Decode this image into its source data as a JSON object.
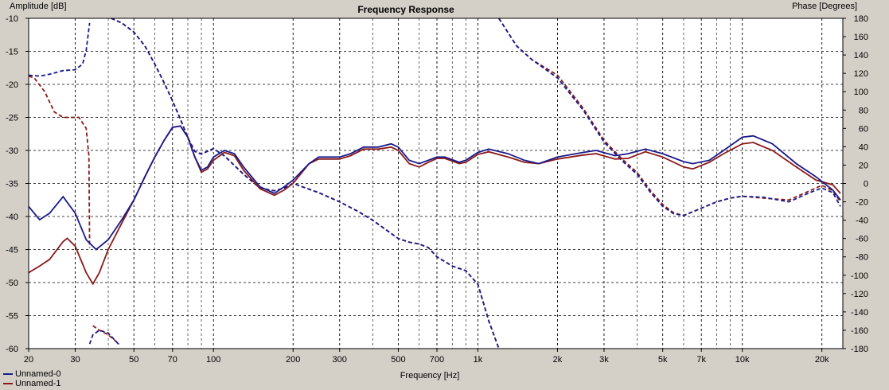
{
  "chart_data": {
    "type": "line",
    "title": "Frequency Response",
    "xlabel": "Frequency [Hz]",
    "ylabel_left": "Amplitude [dB]",
    "ylabel_right": "Phase [Degrees]",
    "xscale": "log",
    "xlim": [
      20,
      24000
    ],
    "ylim_left": [
      -60,
      -10
    ],
    "ylim_right": [
      -180,
      180
    ],
    "x_tick_labels": [
      {
        "v": 20,
        "t": "20"
      },
      {
        "v": 30,
        "t": "30"
      },
      {
        "v": 50,
        "t": "50"
      },
      {
        "v": 70,
        "t": "70"
      },
      {
        "v": 100,
        "t": "100"
      },
      {
        "v": 200,
        "t": "200"
      },
      {
        "v": 300,
        "t": "300"
      },
      {
        "v": 500,
        "t": "500"
      },
      {
        "v": 700,
        "t": "700"
      },
      {
        "v": 1000,
        "t": "1k"
      },
      {
        "v": 2000,
        "t": "2k"
      },
      {
        "v": 3000,
        "t": "3k"
      },
      {
        "v": 5000,
        "t": "5k"
      },
      {
        "v": 7000,
        "t": "7k"
      },
      {
        "v": 10000,
        "t": "10k"
      },
      {
        "v": 20000,
        "t": "20k"
      }
    ],
    "y_left_ticks": [
      -10,
      -15,
      -20,
      -25,
      -30,
      -35,
      -40,
      -45,
      -50,
      -55,
      -60
    ],
    "y_right_ticks": [
      180,
      160,
      140,
      120,
      100,
      80,
      60,
      40,
      20,
      0,
      -20,
      -40,
      -60,
      -80,
      -100,
      -120,
      -140,
      -160,
      -180
    ],
    "grid": true,
    "legend_position": "bottom-left",
    "series": [
      {
        "name": "Unnamed-0",
        "color": "#1a1a8c",
        "magnitude": [
          [
            20,
            -38.5
          ],
          [
            22,
            -40.5
          ],
          [
            24,
            -39.5
          ],
          [
            27,
            -37
          ],
          [
            30,
            -39.5
          ],
          [
            33,
            -43.5
          ],
          [
            36,
            -45
          ],
          [
            40,
            -43.5
          ],
          [
            45,
            -40.5
          ],
          [
            50,
            -37.5
          ],
          [
            55,
            -34
          ],
          [
            60,
            -31
          ],
          [
            65,
            -28.5
          ],
          [
            70,
            -26.5
          ],
          [
            75,
            -26.3
          ],
          [
            80,
            -28
          ],
          [
            85,
            -31
          ],
          [
            90,
            -33
          ],
          [
            95,
            -32.5
          ],
          [
            100,
            -31
          ],
          [
            110,
            -30
          ],
          [
            120,
            -30.5
          ],
          [
            130,
            -32.5
          ],
          [
            150,
            -35.5
          ],
          [
            170,
            -36.5
          ],
          [
            185,
            -35.5
          ],
          [
            200,
            -34.5
          ],
          [
            230,
            -32
          ],
          [
            250,
            -31
          ],
          [
            300,
            -31
          ],
          [
            330,
            -30.5
          ],
          [
            370,
            -29.5
          ],
          [
            420,
            -29.5
          ],
          [
            470,
            -29
          ],
          [
            500,
            -29.5
          ],
          [
            550,
            -31.5
          ],
          [
            600,
            -32
          ],
          [
            650,
            -31.5
          ],
          [
            700,
            -31
          ],
          [
            750,
            -31
          ],
          [
            850,
            -31.8
          ],
          [
            900,
            -31.5
          ],
          [
            1000,
            -30.3
          ],
          [
            1100,
            -29.8
          ],
          [
            1300,
            -30.5
          ],
          [
            1500,
            -31.5
          ],
          [
            1700,
            -32
          ],
          [
            2000,
            -31
          ],
          [
            2500,
            -30.3
          ],
          [
            2800,
            -30
          ],
          [
            3300,
            -30.8
          ],
          [
            3700,
            -30.5
          ],
          [
            4300,
            -29.8
          ],
          [
            5000,
            -30.5
          ],
          [
            6000,
            -31.7
          ],
          [
            6500,
            -32
          ],
          [
            7500,
            -31.5
          ],
          [
            8500,
            -30
          ],
          [
            10000,
            -28
          ],
          [
            11000,
            -27.8
          ],
          [
            13000,
            -29
          ],
          [
            16000,
            -32
          ],
          [
            19000,
            -34
          ],
          [
            22000,
            -36
          ],
          [
            23500,
            -37.5
          ]
        ],
        "phase": [
          [
            20,
            118
          ],
          [
            22,
            117
          ],
          [
            24,
            119
          ],
          [
            27,
            123
          ],
          [
            30,
            124
          ],
          [
            32,
            130
          ],
          [
            33,
            145
          ],
          [
            34,
            175
          ]
        ],
        "phase_low_segment": [
          [
            34,
            -175
          ],
          [
            35,
            -165
          ],
          [
            37,
            -160
          ],
          [
            40,
            -163
          ],
          [
            44,
            -176
          ]
        ],
        "phase_mid_segment": [
          [
            41,
            180
          ],
          [
            45,
            175
          ],
          [
            50,
            165
          ],
          [
            55,
            150
          ],
          [
            60,
            130
          ],
          [
            65,
            110
          ],
          [
            70,
            90
          ],
          [
            75,
            70
          ],
          [
            80,
            50
          ],
          [
            85,
            35
          ],
          [
            90,
            32
          ],
          [
            100,
            38
          ],
          [
            110,
            30
          ],
          [
            130,
            10
          ],
          [
            150,
            -5
          ],
          [
            170,
            -8
          ],
          [
            185,
            -5
          ],
          [
            200,
            0
          ],
          [
            250,
            -10
          ],
          [
            300,
            -20
          ],
          [
            350,
            -30
          ],
          [
            400,
            -40
          ],
          [
            500,
            -60
          ],
          [
            550,
            -64
          ],
          [
            600,
            -66
          ],
          [
            650,
            -70
          ],
          [
            700,
            -80
          ],
          [
            800,
            -90
          ],
          [
            900,
            -95
          ],
          [
            1000,
            -110
          ],
          [
            1100,
            -150
          ],
          [
            1200,
            -180
          ]
        ],
        "phase_high_segment": [
          [
            1200,
            180
          ],
          [
            1400,
            150
          ],
          [
            1600,
            135
          ],
          [
            2000,
            115
          ],
          [
            2500,
            80
          ],
          [
            3000,
            45
          ],
          [
            3500,
            25
          ],
          [
            4000,
            10
          ],
          [
            4500,
            -10
          ],
          [
            5000,
            -25
          ],
          [
            5500,
            -33
          ],
          [
            6000,
            -35
          ],
          [
            7000,
            -27
          ],
          [
            8000,
            -20
          ],
          [
            9000,
            -16
          ],
          [
            10000,
            -14
          ],
          [
            12000,
            -15
          ],
          [
            15000,
            -20
          ],
          [
            18000,
            -10
          ],
          [
            20000,
            -5
          ],
          [
            22000,
            -10
          ],
          [
            23500,
            -25
          ]
        ]
      },
      {
        "name": "Unnamed-1",
        "color": "#8b1a1a",
        "magnitude": [
          [
            20,
            -48.5
          ],
          [
            22,
            -47.5
          ],
          [
            24,
            -46.5
          ],
          [
            27,
            -43.8
          ],
          [
            28,
            -43.3
          ],
          [
            30,
            -44.5
          ],
          [
            33,
            -48.5
          ],
          [
            35,
            -50.2
          ],
          [
            37,
            -48.5
          ],
          [
            40,
            -45
          ],
          [
            45,
            -41
          ],
          [
            50,
            -37.5
          ],
          [
            55,
            -34
          ],
          [
            60,
            -31
          ],
          [
            65,
            -28.5
          ],
          [
            70,
            -26.5
          ],
          [
            75,
            -26.3
          ],
          [
            80,
            -28
          ],
          [
            85,
            -31
          ],
          [
            90,
            -33.3
          ],
          [
            95,
            -32.8
          ],
          [
            100,
            -31.5
          ],
          [
            110,
            -30.3
          ],
          [
            120,
            -30.8
          ],
          [
            130,
            -33
          ],
          [
            150,
            -35.8
          ],
          [
            170,
            -36.8
          ],
          [
            185,
            -36
          ],
          [
            200,
            -35
          ],
          [
            230,
            -32
          ],
          [
            250,
            -31.3
          ],
          [
            300,
            -31.3
          ],
          [
            330,
            -30.8
          ],
          [
            370,
            -29.8
          ],
          [
            420,
            -29.8
          ],
          [
            470,
            -29.5
          ],
          [
            500,
            -30
          ],
          [
            550,
            -32
          ],
          [
            600,
            -32.5
          ],
          [
            650,
            -31.8
          ],
          [
            700,
            -31.2
          ],
          [
            750,
            -31.2
          ],
          [
            850,
            -32
          ],
          [
            900,
            -31.8
          ],
          [
            1000,
            -30.6
          ],
          [
            1100,
            -30.2
          ],
          [
            1300,
            -31
          ],
          [
            1500,
            -31.8
          ],
          [
            1700,
            -32
          ],
          [
            2000,
            -31.3
          ],
          [
            2500,
            -30.7
          ],
          [
            2800,
            -30.5
          ],
          [
            3300,
            -31.3
          ],
          [
            3700,
            -31.2
          ],
          [
            4300,
            -30.2
          ],
          [
            5000,
            -31
          ],
          [
            6000,
            -32.5
          ],
          [
            6500,
            -32.8
          ],
          [
            7500,
            -31.8
          ],
          [
            8500,
            -30.5
          ],
          [
            10000,
            -29
          ],
          [
            11000,
            -28.8
          ],
          [
            13000,
            -30
          ],
          [
            16000,
            -32.5
          ],
          [
            19000,
            -34.5
          ],
          [
            22000,
            -35.2
          ],
          [
            23500,
            -36.5
          ]
        ],
        "phase": [
          [
            20,
            117
          ],
          [
            21,
            115
          ],
          [
            23,
            100
          ],
          [
            25,
            78
          ],
          [
            27,
            72
          ],
          [
            29,
            72
          ],
          [
            31,
            72
          ],
          [
            33,
            60
          ],
          [
            33.8,
            30
          ],
          [
            34,
            -70
          ]
        ],
        "phase_low_segment": [
          [
            35,
            -155
          ],
          [
            37,
            -160
          ],
          [
            40,
            -165
          ],
          [
            44,
            -175
          ]
        ],
        "phase_mid_segment": [
          [
            41,
            180
          ],
          [
            45,
            175
          ],
          [
            50,
            165
          ],
          [
            55,
            150
          ],
          [
            60,
            130
          ],
          [
            65,
            110
          ],
          [
            70,
            90
          ],
          [
            75,
            70
          ],
          [
            80,
            50
          ],
          [
            85,
            35
          ],
          [
            90,
            32
          ],
          [
            100,
            38
          ],
          [
            110,
            30
          ],
          [
            130,
            10
          ],
          [
            150,
            -5
          ],
          [
            170,
            -8
          ],
          [
            185,
            -5
          ],
          [
            200,
            0
          ],
          [
            250,
            -10
          ],
          [
            300,
            -20
          ],
          [
            350,
            -30
          ],
          [
            400,
            -40
          ],
          [
            500,
            -60
          ],
          [
            550,
            -64
          ],
          [
            600,
            -66
          ],
          [
            650,
            -70
          ],
          [
            700,
            -80
          ],
          [
            800,
            -90
          ],
          [
            900,
            -95
          ],
          [
            1000,
            -110
          ],
          [
            1100,
            -150
          ],
          [
            1200,
            -180
          ]
        ],
        "phase_high_segment": [
          [
            1200,
            180
          ],
          [
            1400,
            150
          ],
          [
            1600,
            135
          ],
          [
            2000,
            118
          ],
          [
            2500,
            82
          ],
          [
            3000,
            47
          ],
          [
            3500,
            27
          ],
          [
            4000,
            12
          ],
          [
            4500,
            -8
          ],
          [
            5000,
            -23
          ],
          [
            5500,
            -32
          ],
          [
            6000,
            -35
          ],
          [
            7000,
            -27
          ],
          [
            8000,
            -20
          ],
          [
            9000,
            -16
          ],
          [
            10000,
            -14
          ],
          [
            12000,
            -16
          ],
          [
            15000,
            -18
          ],
          [
            18000,
            -8
          ],
          [
            20000,
            -2
          ],
          [
            22000,
            -8
          ],
          [
            23500,
            -20
          ]
        ]
      }
    ]
  }
}
